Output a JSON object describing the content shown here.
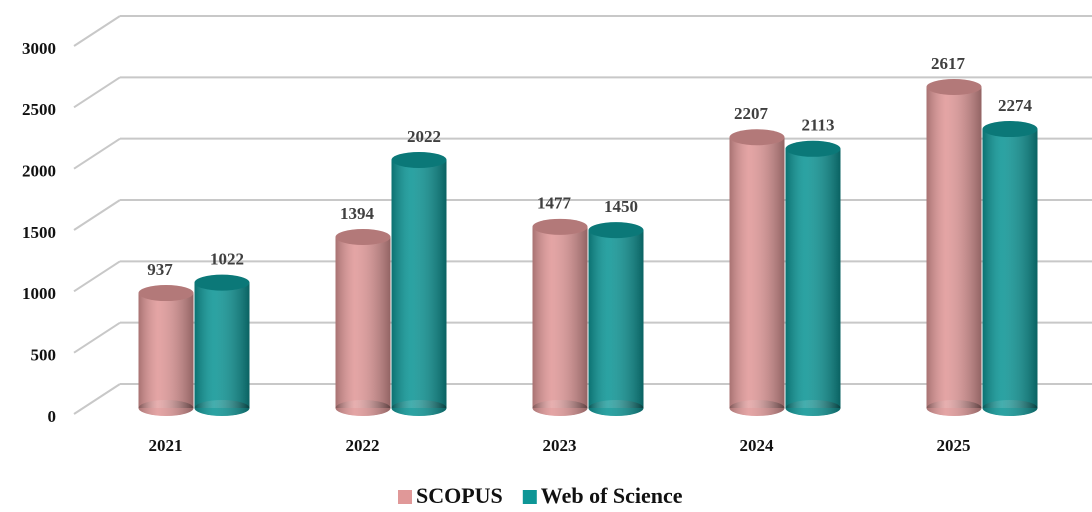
{
  "chart_data": {
    "type": "bar",
    "categories": [
      "2021",
      "2022",
      "2023",
      "2024",
      "2025"
    ],
    "series": [
      {
        "name": "SCOPUS",
        "color": "#e09898",
        "values": [
          937,
          1394,
          1477,
          2207,
          2617
        ]
      },
      {
        "name": "Web of Science",
        "color": "#0e9696",
        "values": [
          1022,
          2022,
          1450,
          2113,
          2274
        ]
      }
    ],
    "ylim": [
      0,
      3000
    ],
    "yticks": [
      0,
      500,
      1000,
      1500,
      2000,
      2500,
      3000
    ],
    "grid": true,
    "legend": "bottom"
  }
}
